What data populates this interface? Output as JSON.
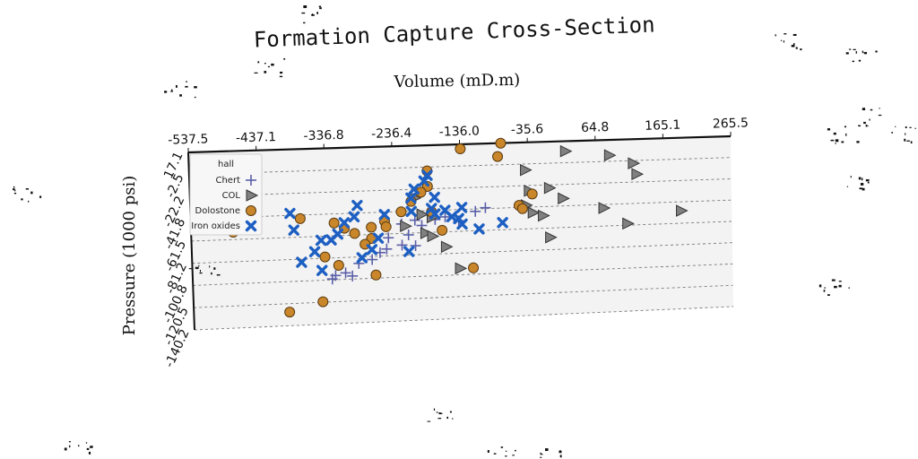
{
  "chart_data": {
    "type": "scatter",
    "title": "Formation Capture Cross-Section",
    "xlabel": "Volume (mD.m)",
    "ylabel": "Pressure (1000 psi)",
    "x_axis_position": "top",
    "xlim": [
      -537.5,
      265.5
    ],
    "ylim": [
      -140.2,
      17.1
    ],
    "x_ticks": [
      "-537.5",
      "-437.1",
      "-336.8",
      "-236.4",
      "-136.0",
      "-35.6",
      "64.8",
      "165.1",
      "265.5"
    ],
    "y_ticks": [
      "17.1",
      "-2.5",
      "-22.2",
      "-41.8",
      "-61.5",
      "-81.2",
      "-100.8",
      "-120.5",
      "-140.2"
    ],
    "grid": "horizontal",
    "legend": {
      "title": "hall",
      "placement": "top-left",
      "entries": [
        "Chert",
        "COL",
        "Dolostone",
        "Iron oxides"
      ]
    },
    "series": [
      {
        "name": "Chert",
        "marker": "plus",
        "color": "#5a5fa8",
        "points": [
          [
            -330,
            -100
          ],
          [
            -325,
            -97
          ],
          [
            -310,
            -95
          ],
          [
            -300,
            -98
          ],
          [
            -290,
            -87
          ],
          [
            -270,
            -84
          ],
          [
            -258,
            -78
          ],
          [
            -248,
            -75
          ],
          [
            -225,
            -72
          ],
          [
            -205,
            -73
          ],
          [
            -245,
            -65
          ],
          [
            -215,
            -63
          ],
          [
            -195,
            -55
          ],
          [
            -175,
            -50
          ],
          [
            -160,
            -48
          ],
          [
            -140,
            -52
          ],
          [
            -115,
            -44
          ],
          [
            -100,
            -41
          ],
          [
            -225,
            -53
          ],
          [
            -205,
            -50
          ]
        ]
      },
      {
        "name": "COL",
        "marker": "triangle-right",
        "color": "#808080",
        "points": [
          [
            20,
            8
          ],
          [
            85,
            3
          ],
          [
            120,
            -5
          ],
          [
            125,
            -15
          ],
          [
            -40,
            -8
          ],
          [
            -35,
            -27
          ],
          [
            -40,
            -40
          ],
          [
            -30,
            -47
          ],
          [
            -15,
            -50
          ],
          [
            -5,
            -70
          ],
          [
            -5,
            -25
          ],
          [
            15,
            -35
          ],
          [
            75,
            -45
          ],
          [
            110,
            -60
          ],
          [
            190,
            -50
          ],
          [
            -205,
            -30
          ],
          [
            -180,
            -48
          ],
          [
            -220,
            -55
          ],
          [
            -160,
            -75
          ],
          [
            -140,
            -95
          ],
          [
            -190,
            -62
          ],
          [
            -180,
            -65
          ],
          [
            -195,
            -45
          ]
        ]
      },
      {
        "name": "Dolostone",
        "marker": "circle",
        "color": "#c9862a",
        "points": [
          [
            -75,
            17
          ],
          [
            -135,
            13
          ],
          [
            -80,
            5
          ],
          [
            -185,
            -6
          ],
          [
            -185,
            -20
          ],
          [
            -30,
            -30
          ],
          [
            -50,
            -40
          ],
          [
            -45,
            -43
          ],
          [
            -195,
            -25
          ],
          [
            -210,
            -33
          ],
          [
            -225,
            -42
          ],
          [
            -250,
            -50
          ],
          [
            -248,
            -55
          ],
          [
            -270,
            -55
          ],
          [
            -270,
            -65
          ],
          [
            -280,
            -70
          ],
          [
            -295,
            -60
          ],
          [
            -310,
            -55
          ],
          [
            -325,
            -50
          ],
          [
            -340,
            -80
          ],
          [
            -320,
            -88
          ],
          [
            -375,
            -45
          ],
          [
            -475,
            -46
          ],
          [
            -475,
            -55
          ],
          [
            -180,
            -43
          ],
          [
            -165,
            -60
          ],
          [
            -120,
            -95
          ],
          [
            -265,
            -98
          ],
          [
            -345,
            -120
          ],
          [
            -395,
            -128
          ]
        ]
      },
      {
        "name": "Iron oxides",
        "marker": "x",
        "color": "#1d5fc2",
        "points": [
          [
            -185,
            -10
          ],
          [
            -190,
            -15
          ],
          [
            -205,
            -22
          ],
          [
            -210,
            -30
          ],
          [
            -175,
            -30
          ],
          [
            -180,
            -40
          ],
          [
            -160,
            -42
          ],
          [
            -175,
            -45
          ],
          [
            -150,
            -48
          ],
          [
            -135,
            -40
          ],
          [
            -140,
            -50
          ],
          [
            -210,
            -42
          ],
          [
            -250,
            -44
          ],
          [
            -290,
            -35
          ],
          [
            -295,
            -45
          ],
          [
            -310,
            -50
          ],
          [
            -320,
            -60
          ],
          [
            -330,
            -65
          ],
          [
            -345,
            -65
          ],
          [
            -355,
            -75
          ],
          [
            -385,
            -55
          ],
          [
            -390,
            -40
          ],
          [
            -260,
            -65
          ],
          [
            -270,
            -75
          ],
          [
            -285,
            -82
          ],
          [
            -215,
            -78
          ],
          [
            -345,
            -92
          ],
          [
            -375,
            -84
          ],
          [
            -135,
            -55
          ],
          [
            -110,
            -60
          ],
          [
            -75,
            -55
          ]
        ]
      }
    ]
  }
}
